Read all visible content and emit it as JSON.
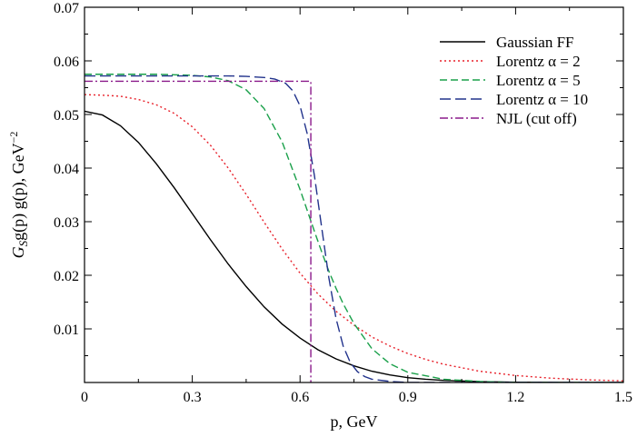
{
  "chart_data": {
    "type": "line",
    "xlabel": "p, GeV",
    "ylabel": {
      "pre": "G",
      "sub": "S",
      "mid": "g(p) g(p), GeV",
      "sup": "−2"
    },
    "xlim": [
      0,
      1.5
    ],
    "ylim": [
      0,
      0.07
    ],
    "xticks": [
      0,
      0.3,
      0.6,
      0.9,
      1.2,
      1.5
    ],
    "xtick_labels": [
      "0",
      "0.3",
      "0.6",
      "0.9",
      "1.2",
      "1.5"
    ],
    "yticks": [
      0.01,
      0.02,
      0.03,
      0.04,
      0.05,
      0.06,
      0.07
    ],
    "ytick_labels": [
      "0.01",
      "0.02",
      "0.03",
      "0.04",
      "0.05",
      "0.06",
      "0.07"
    ],
    "grid": false,
    "legend_position": "top-right",
    "series": [
      {
        "name": "Gaussian FF",
        "color": "#000000",
        "dash": "solid",
        "x": [
          0,
          0.05,
          0.1,
          0.15,
          0.2,
          0.25,
          0.3,
          0.35,
          0.4,
          0.45,
          0.5,
          0.55,
          0.6,
          0.65,
          0.7,
          0.75,
          0.8,
          0.85,
          0.9,
          0.95,
          1.0,
          1.1,
          1.2,
          1.3,
          1.4,
          1.5
        ],
        "y": [
          0.0506,
          0.0499,
          0.0479,
          0.0448,
          0.0408,
          0.0363,
          0.0315,
          0.0267,
          0.0221,
          0.0179,
          0.0141,
          0.0109,
          0.0083,
          0.0061,
          0.0044,
          0.0031,
          0.0021,
          0.0014,
          0.0009,
          0.0006,
          0.0004,
          0.00015,
          5e-05,
          2e-05,
          0.0,
          0.0
        ]
      },
      {
        "name": "Lorentz  α = 2",
        "color": "#e8202a",
        "dash": "dotted",
        "x": [
          0,
          0.05,
          0.1,
          0.15,
          0.2,
          0.25,
          0.3,
          0.35,
          0.4,
          0.45,
          0.5,
          0.55,
          0.6,
          0.65,
          0.7,
          0.75,
          0.8,
          0.85,
          0.9,
          0.95,
          1.0,
          1.1,
          1.2,
          1.3,
          1.4,
          1.5
        ],
        "y": [
          0.0537,
          0.0536,
          0.0534,
          0.0528,
          0.0518,
          0.0502,
          0.0477,
          0.0443,
          0.04,
          0.0351,
          0.0299,
          0.0249,
          0.0204,
          0.0165,
          0.0133,
          0.0107,
          0.0085,
          0.0068,
          0.0054,
          0.0043,
          0.0034,
          0.0021,
          0.0013,
          0.0008,
          0.0005,
          0.0003
        ]
      },
      {
        "name": "Lorentz  α = 5",
        "color": "#1aa04a",
        "dash": "dashed",
        "x": [
          0,
          0.05,
          0.1,
          0.15,
          0.2,
          0.25,
          0.3,
          0.35,
          0.4,
          0.45,
          0.5,
          0.55,
          0.6,
          0.62,
          0.64,
          0.66,
          0.68,
          0.7,
          0.72,
          0.75,
          0.8,
          0.85,
          0.9,
          1.0,
          1.1,
          1.2,
          1.5
        ],
        "y": [
          0.0575,
          0.0575,
          0.0575,
          0.0575,
          0.0575,
          0.0574,
          0.0573,
          0.057,
          0.0563,
          0.0546,
          0.0511,
          0.0449,
          0.036,
          0.0321,
          0.0282,
          0.0244,
          0.0208,
          0.0176,
          0.0147,
          0.011,
          0.0063,
          0.0035,
          0.0019,
          0.0006,
          0.0002,
          0.0,
          0.0
        ]
      },
      {
        "name": "Lorentz  α = 10",
        "color": "#22338c",
        "dash": "longdash",
        "x": [
          0,
          0.1,
          0.2,
          0.3,
          0.4,
          0.45,
          0.5,
          0.53,
          0.56,
          0.58,
          0.6,
          0.62,
          0.64,
          0.66,
          0.68,
          0.7,
          0.72,
          0.74,
          0.76,
          0.78,
          0.8,
          0.85,
          0.9,
          1.0,
          1.2,
          1.5
        ],
        "y": [
          0.0572,
          0.0572,
          0.0572,
          0.0572,
          0.0572,
          0.0571,
          0.0569,
          0.0566,
          0.0558,
          0.0544,
          0.0516,
          0.0464,
          0.0386,
          0.029,
          0.0196,
          0.012,
          0.0068,
          0.0037,
          0.002,
          0.0011,
          0.0006,
          0.0002,
          0.0,
          0.0,
          0.0,
          0.0
        ]
      },
      {
        "name": "NJL (cut off)",
        "color": "#8b1a8b",
        "dash": "dashdot",
        "x": [
          0,
          0.63,
          0.63
        ],
        "y": [
          0.0562,
          0.0562,
          0.0
        ]
      }
    ]
  }
}
